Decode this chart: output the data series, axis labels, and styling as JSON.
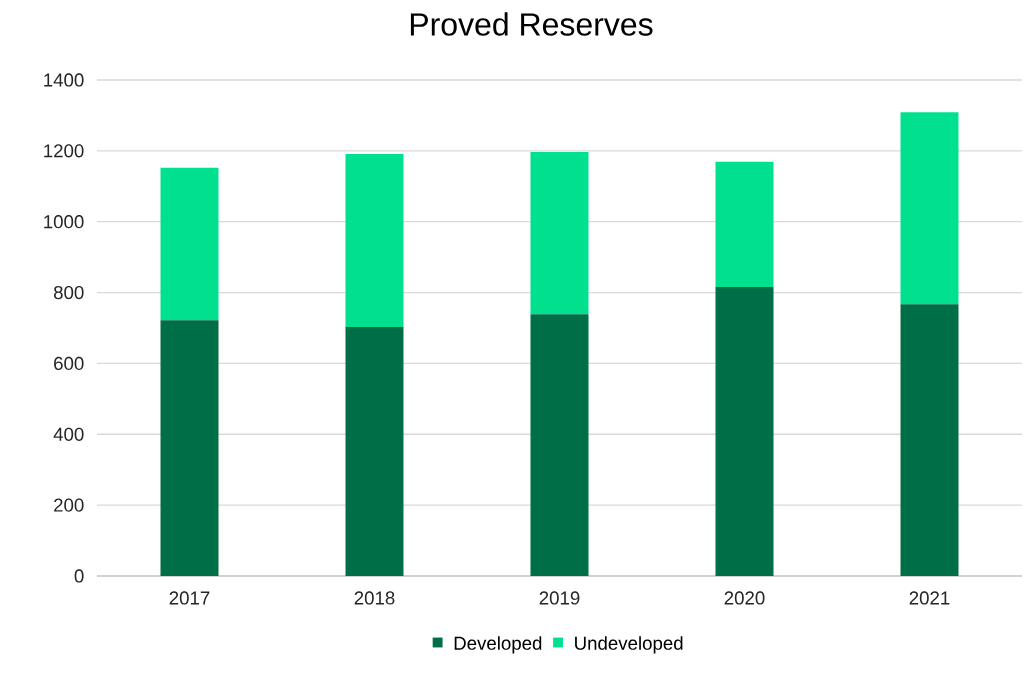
{
  "chart_data": {
    "type": "bar",
    "title": "Proved Reserves",
    "categories": [
      "2017",
      "2018",
      "2019",
      "2020",
      "2021"
    ],
    "stacked": true,
    "series": [
      {
        "name": "Developed",
        "color": "#006f47",
        "values": [
          722,
          703,
          739,
          816,
          767
        ]
      },
      {
        "name": "Undeveloped",
        "color": "#00e08f",
        "values": [
          430,
          488,
          458,
          353,
          542
        ]
      }
    ],
    "ylim": [
      0,
      1400
    ],
    "yticks": [
      0,
      200,
      400,
      600,
      800,
      1000,
      1200,
      1400
    ],
    "grid": "y",
    "legend": "bottom"
  }
}
